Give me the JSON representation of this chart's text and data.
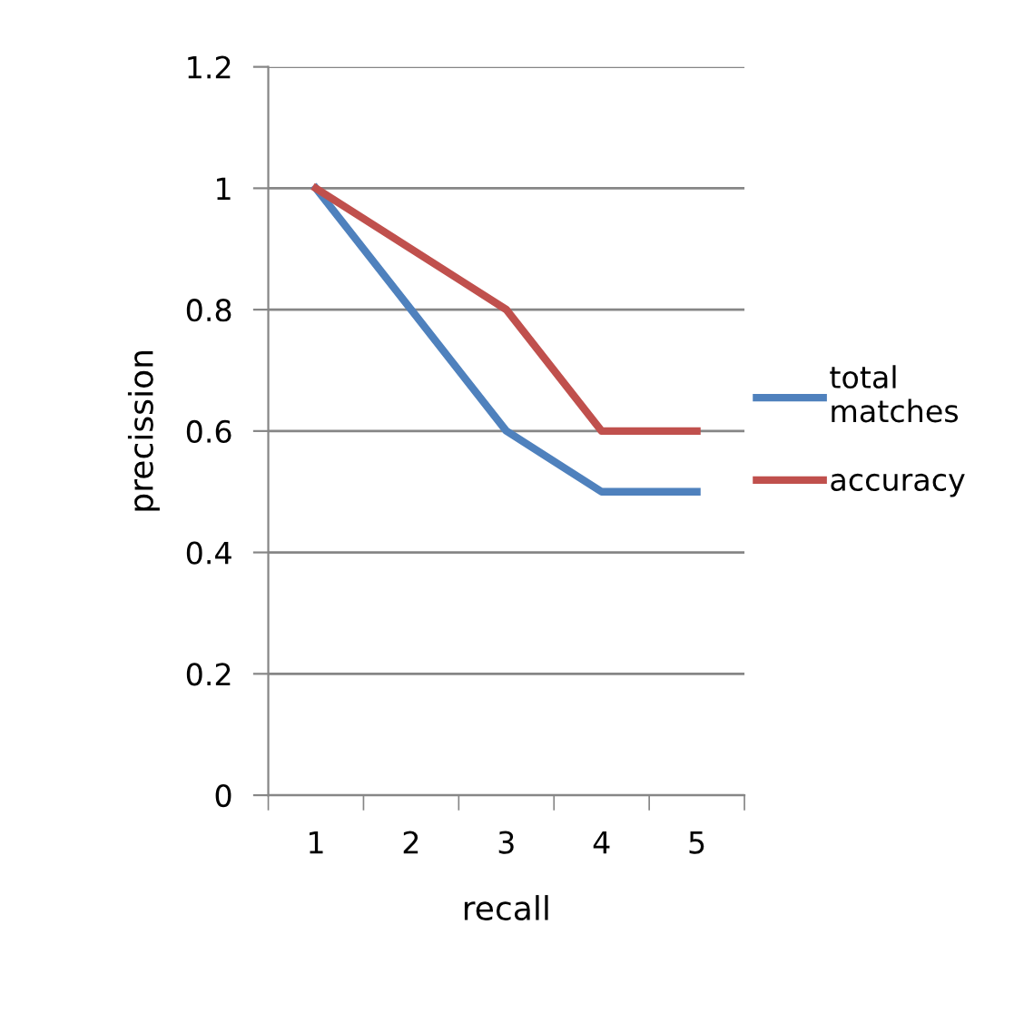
{
  "chart_data": {
    "type": "line",
    "xlabel": "recall",
    "ylabel": "precission",
    "categories": [
      "1",
      "2",
      "3",
      "4",
      "5"
    ],
    "series": [
      {
        "name": "total matches",
        "color": "#4f81bd",
        "values": [
          1,
          0.8,
          0.6,
          0.5,
          0.5
        ]
      },
      {
        "name": "accuracy",
        "color": "#c0504d",
        "values": [
          1,
          0.9,
          0.8,
          0.6,
          0.6
        ]
      }
    ],
    "ylim": [
      0,
      1.2
    ],
    "yticks": [
      0,
      0.2,
      0.4,
      0.6,
      0.8,
      1,
      1.2
    ],
    "grid": "y",
    "legend": "right",
    "marker": "none",
    "line_style": "solid"
  }
}
